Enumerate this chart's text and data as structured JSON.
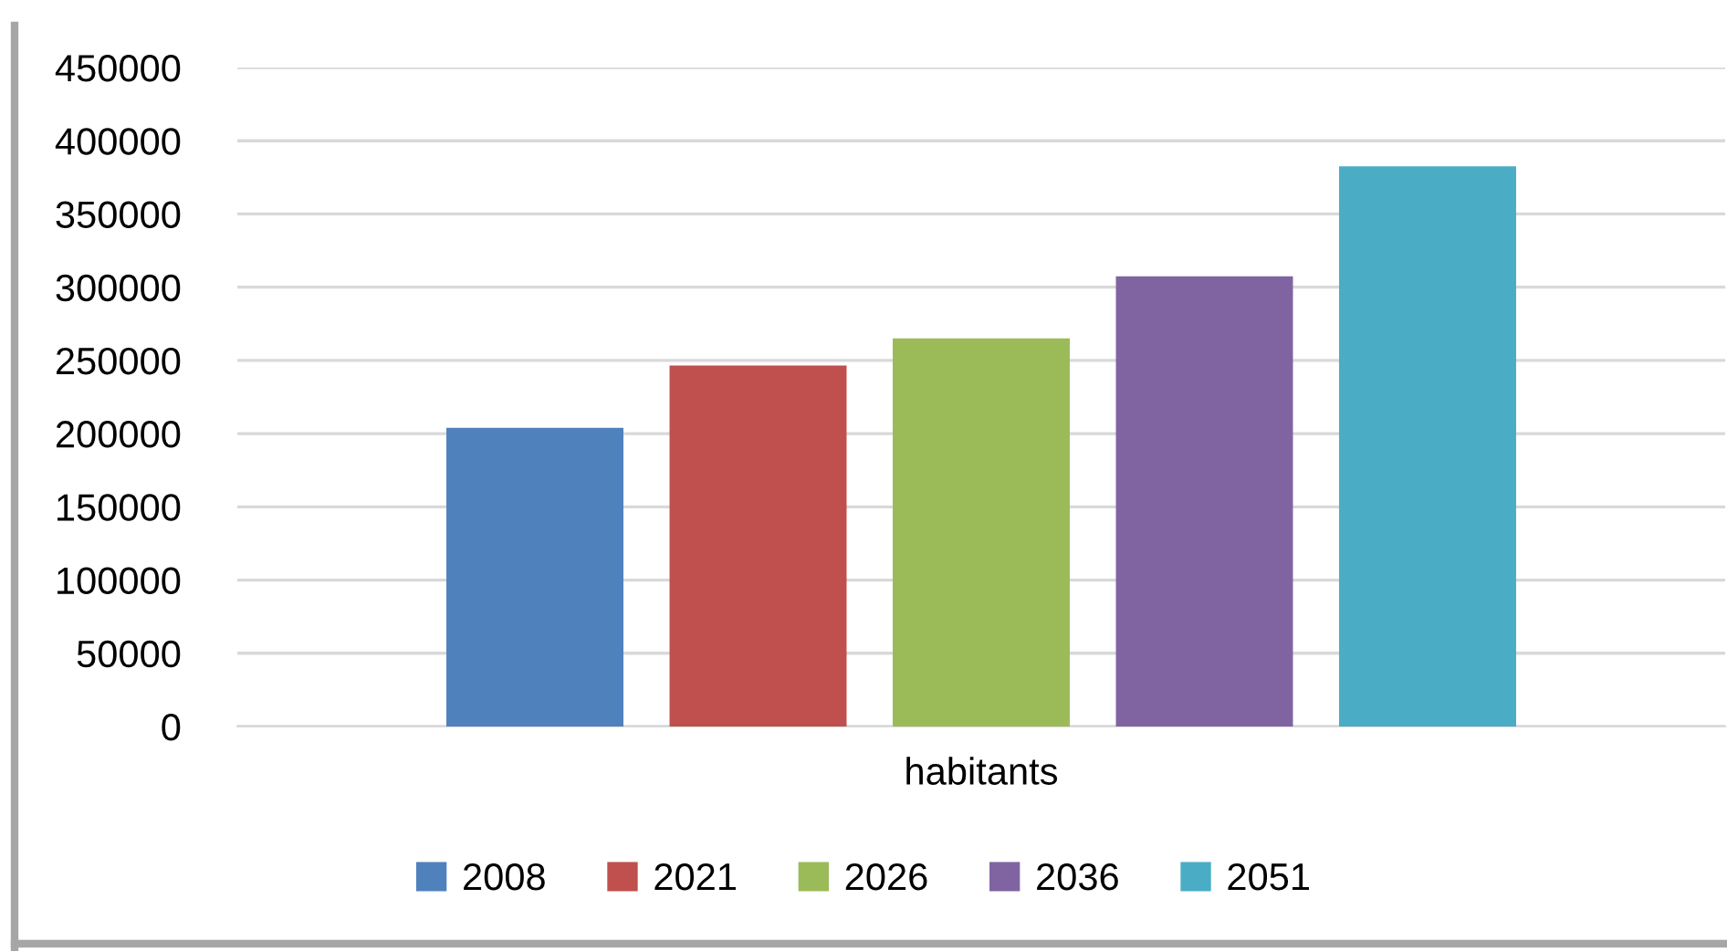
{
  "chart_data": {
    "type": "bar",
    "categories": [
      "habitants"
    ],
    "series": [
      {
        "name": "2008",
        "color": "#4f81bd",
        "values": [
          204000
        ]
      },
      {
        "name": "2021",
        "color": "#c0504d",
        "values": [
          246500
        ]
      },
      {
        "name": "2026",
        "color": "#9bbb59",
        "values": [
          265000
        ]
      },
      {
        "name": "2036",
        "color": "#8064a2",
        "values": [
          307500
        ]
      },
      {
        "name": "2051",
        "color": "#4bacc6",
        "values": [
          382500
        ]
      }
    ],
    "ylim": [
      0,
      450000
    ],
    "yticks": [
      0,
      50000,
      100000,
      150000,
      200000,
      250000,
      300000,
      350000,
      400000,
      450000
    ],
    "grid": "y",
    "legend": "bottom"
  }
}
